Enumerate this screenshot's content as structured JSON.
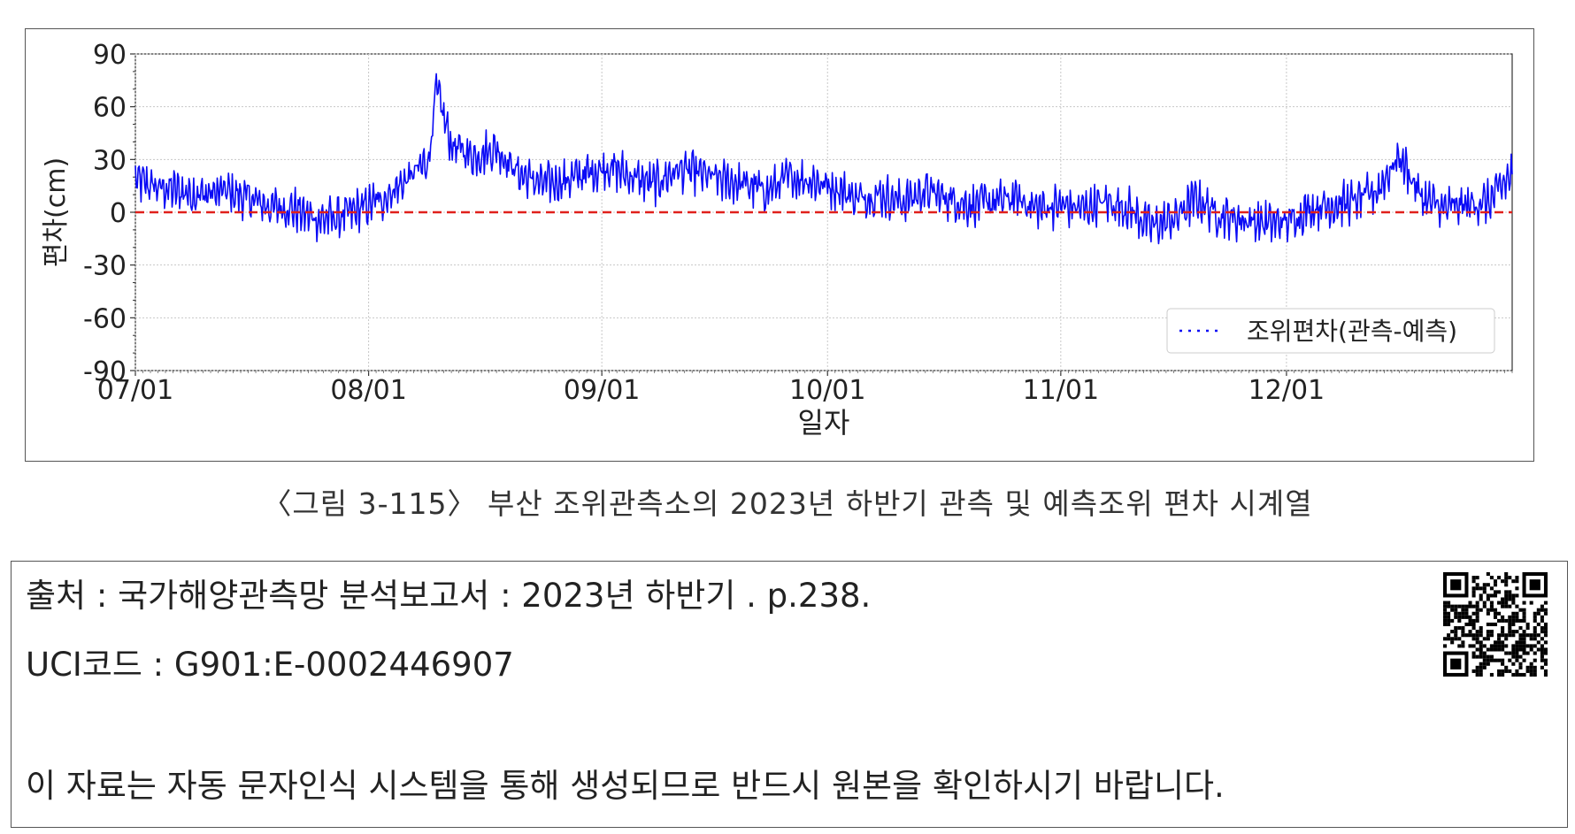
{
  "chart_data": {
    "type": "line",
    "xlabel": "일자",
    "ylabel": "편차(cm)",
    "ylim": [
      -90,
      90
    ],
    "yticks": [
      90,
      60,
      30,
      0,
      -30,
      -60,
      -90
    ],
    "xlim": [
      "2023-07-01",
      "2023-12-31"
    ],
    "xticks": [
      "07/01",
      "08/01",
      "09/01",
      "10/01",
      "11/01",
      "12/01"
    ],
    "xtick_dates": [
      "2023-07-01",
      "2023-08-01",
      "2023-09-01",
      "2023-10-01",
      "2023-11-01",
      "2023-12-01"
    ],
    "grid": true,
    "legend_position": "lower-right",
    "reference_line": {
      "y": 0,
      "color": "#e0201b",
      "style": "dashed"
    },
    "series": [
      {
        "name": "조위편차(관측-예측)",
        "color": "#0a0af5",
        "x": [
          "2023-07-01",
          "2023-07-04",
          "2023-07-07",
          "2023-07-10",
          "2023-07-13",
          "2023-07-16",
          "2023-07-19",
          "2023-07-22",
          "2023-07-25",
          "2023-07-28",
          "2023-07-31",
          "2023-08-03",
          "2023-08-06",
          "2023-08-09",
          "2023-08-10",
          "2023-08-12",
          "2023-08-15",
          "2023-08-18",
          "2023-08-21",
          "2023-08-24",
          "2023-08-27",
          "2023-08-30",
          "2023-09-02",
          "2023-09-05",
          "2023-09-08",
          "2023-09-11",
          "2023-09-14",
          "2023-09-17",
          "2023-09-20",
          "2023-09-23",
          "2023-09-26",
          "2023-09-29",
          "2023-10-02",
          "2023-10-05",
          "2023-10-08",
          "2023-10-11",
          "2023-10-14",
          "2023-10-17",
          "2023-10-20",
          "2023-10-23",
          "2023-10-26",
          "2023-10-29",
          "2023-11-01",
          "2023-11-04",
          "2023-11-07",
          "2023-11-10",
          "2023-11-13",
          "2023-11-16",
          "2023-11-19",
          "2023-11-22",
          "2023-11-25",
          "2023-11-28",
          "2023-12-01",
          "2023-12-04",
          "2023-12-07",
          "2023-12-10",
          "2023-12-13",
          "2023-12-16",
          "2023-12-19",
          "2023-12-22",
          "2023-12-25",
          "2023-12-28",
          "2023-12-31"
        ],
        "values": [
          18,
          14,
          12,
          10,
          12,
          8,
          3,
          2,
          -4,
          -3,
          2,
          8,
          18,
          30,
          70,
          38,
          32,
          36,
          22,
          16,
          18,
          22,
          26,
          20,
          16,
          24,
          22,
          18,
          16,
          12,
          20,
          18,
          14,
          8,
          10,
          6,
          12,
          8,
          4,
          6,
          8,
          2,
          4,
          2,
          6,
          2,
          -8,
          -4,
          8,
          -2,
          -4,
          -6,
          -6,
          2,
          4,
          6,
          12,
          32,
          8,
          2,
          4,
          6,
          22
        ]
      }
    ]
  },
  "caption": "〈그림 3-115〉 부산 조위관측소의 2023년 하반기 관측 및 예측조위 편차 시계열",
  "source": {
    "line1": "출처 : 국가해양관측망 분석보고서 : 2023년 하반기 . p.238.",
    "line2": "UCI코드 : G901:E-0002446907",
    "line3": "이 자료는 자동 문자인식 시스템을 통해 생성되므로 반드시 원본을 확인하시기 바랍니다."
  },
  "qr_icon": "qr-code-icon"
}
